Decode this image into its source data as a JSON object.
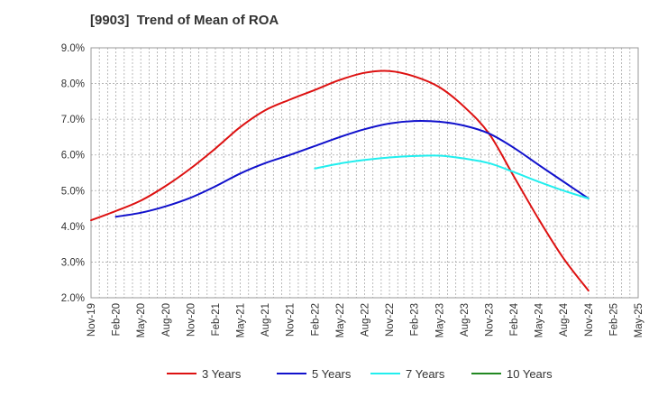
{
  "chart_data": {
    "type": "line",
    "title": "[9903]  Trend of Mean of ROA",
    "xlabel": "",
    "ylabel": "",
    "ylim": [
      2.0,
      9.0
    ],
    "y_ticks": [
      "2.0%",
      "3.0%",
      "4.0%",
      "5.0%",
      "6.0%",
      "7.0%",
      "8.0%",
      "9.0%"
    ],
    "y_tick_values": [
      2,
      3,
      4,
      5,
      6,
      7,
      8,
      9
    ],
    "x_ticks": [
      "Nov-19",
      "Feb-20",
      "May-20",
      "Aug-20",
      "Nov-20",
      "Feb-21",
      "May-21",
      "Aug-21",
      "Nov-21",
      "Feb-22",
      "May-22",
      "Aug-22",
      "Nov-22",
      "Feb-23",
      "May-23",
      "Aug-23",
      "Nov-23",
      "Feb-24",
      "May-24",
      "Aug-24",
      "Nov-24",
      "Feb-25",
      "May-25"
    ],
    "grid": true,
    "legend_position": "bottom",
    "series": [
      {
        "name": "3 Years",
        "color": "#dd1111",
        "x": [
          0,
          1,
          2,
          3,
          4,
          5,
          6,
          7,
          8,
          9,
          10,
          11,
          12,
          13,
          14,
          15,
          16,
          17,
          18,
          19,
          20
        ],
        "values": [
          4.17,
          4.43,
          4.72,
          5.13,
          5.62,
          6.18,
          6.78,
          7.25,
          7.55,
          7.82,
          8.1,
          8.3,
          8.35,
          8.2,
          7.9,
          7.35,
          6.6,
          5.4,
          4.2,
          3.1,
          2.2
        ]
      },
      {
        "name": "5 Years",
        "color": "#1111cc",
        "x": [
          1,
          2,
          3,
          4,
          5,
          6,
          7,
          8,
          9,
          10,
          11,
          12,
          13,
          14,
          15,
          16,
          17,
          18,
          19,
          20
        ],
        "values": [
          4.27,
          4.38,
          4.56,
          4.8,
          5.12,
          5.48,
          5.77,
          6.0,
          6.25,
          6.5,
          6.72,
          6.88,
          6.95,
          6.93,
          6.82,
          6.6,
          6.2,
          5.72,
          5.25,
          4.78
        ]
      },
      {
        "name": "7 Years",
        "color": "#22eeee",
        "x": [
          9,
          10,
          11,
          12,
          13,
          14,
          15,
          16,
          17,
          18,
          19,
          20
        ],
        "values": [
          5.62,
          5.76,
          5.86,
          5.93,
          5.97,
          5.98,
          5.9,
          5.77,
          5.52,
          5.25,
          5.0,
          4.78
        ]
      },
      {
        "name": "10 Years",
        "color": "#228822",
        "x": [],
        "values": []
      }
    ]
  }
}
